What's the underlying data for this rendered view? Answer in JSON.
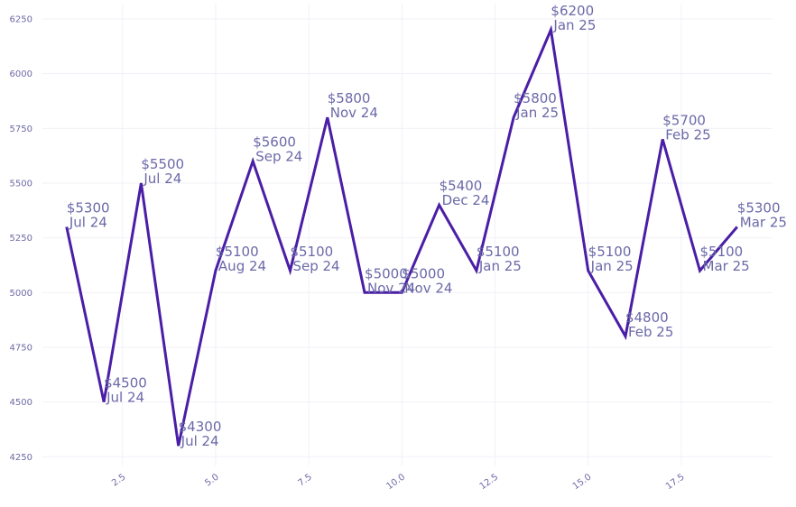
{
  "chart_data": {
    "type": "line",
    "title": "",
    "xlabel": "",
    "ylabel": "",
    "xlim": [
      0.35,
      19.95
    ],
    "ylim": [
      4210,
      6320
    ],
    "x_ticks": [
      2.5,
      5.0,
      7.5,
      10.0,
      12.5,
      15.0,
      17.5
    ],
    "x_tick_labels": [
      "2.5",
      "5.0",
      "7.5",
      "10.0",
      "12.5",
      "15.0",
      "17.5"
    ],
    "y_ticks": [
      4250,
      4500,
      4750,
      5000,
      5250,
      5500,
      5750,
      6000,
      6250
    ],
    "y_tick_labels": [
      "4250",
      "4500",
      "4750",
      "5000",
      "5250",
      "5500",
      "5750",
      "6000",
      "6250"
    ],
    "grid": true,
    "colors": {
      "line": "#4a1ea6",
      "grid": "#f2f0f7",
      "text": "#6b69a8"
    },
    "series": [
      {
        "name": "price",
        "x": [
          1,
          2,
          3,
          4,
          5,
          6,
          7,
          8,
          9,
          10,
          11,
          12,
          13,
          14,
          15,
          16,
          17,
          18,
          19
        ],
        "values": [
          5300,
          4500,
          5500,
          4300,
          5100,
          5600,
          5100,
          5800,
          5000,
          5000,
          5400,
          5100,
          5800,
          6200,
          5100,
          4800,
          5700,
          5100,
          5300
        ],
        "price_labels": [
          "$5300",
          "$4500",
          "$5500",
          "$4300",
          "$5100",
          "$5600",
          "$5100",
          "$5800",
          "$5000",
          "$5000",
          "$5400",
          "$5100",
          "$5800",
          "$6200",
          "$5100",
          "$4800",
          "$5700",
          "$5100",
          "$5300"
        ],
        "date_labels": [
          "Jul 24",
          "Jul 24",
          "Jul 24",
          "Jul 24",
          "Aug 24",
          "Sep 24",
          "Sep 24",
          "Nov 24",
          "Nov 24",
          "Nov 24",
          "Dec 24",
          "Jan 25",
          "Jan 25",
          "Jan 25",
          "Jan 25",
          "Feb 25",
          "Feb 25",
          "Mar 25",
          "Mar 25"
        ]
      }
    ]
  }
}
